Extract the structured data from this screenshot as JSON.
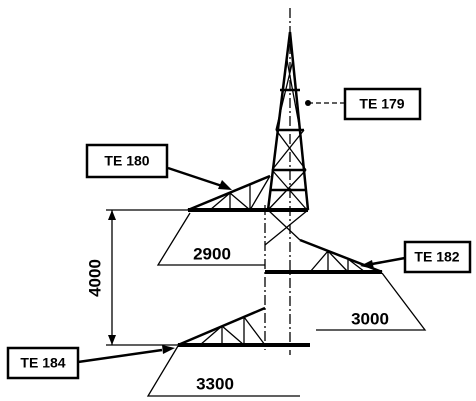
{
  "labels": [
    "TE 179",
    "TE 180",
    "TE 182",
    "TE 184"
  ],
  "dimensions": [
    4000,
    2900,
    3000,
    3300
  ]
}
